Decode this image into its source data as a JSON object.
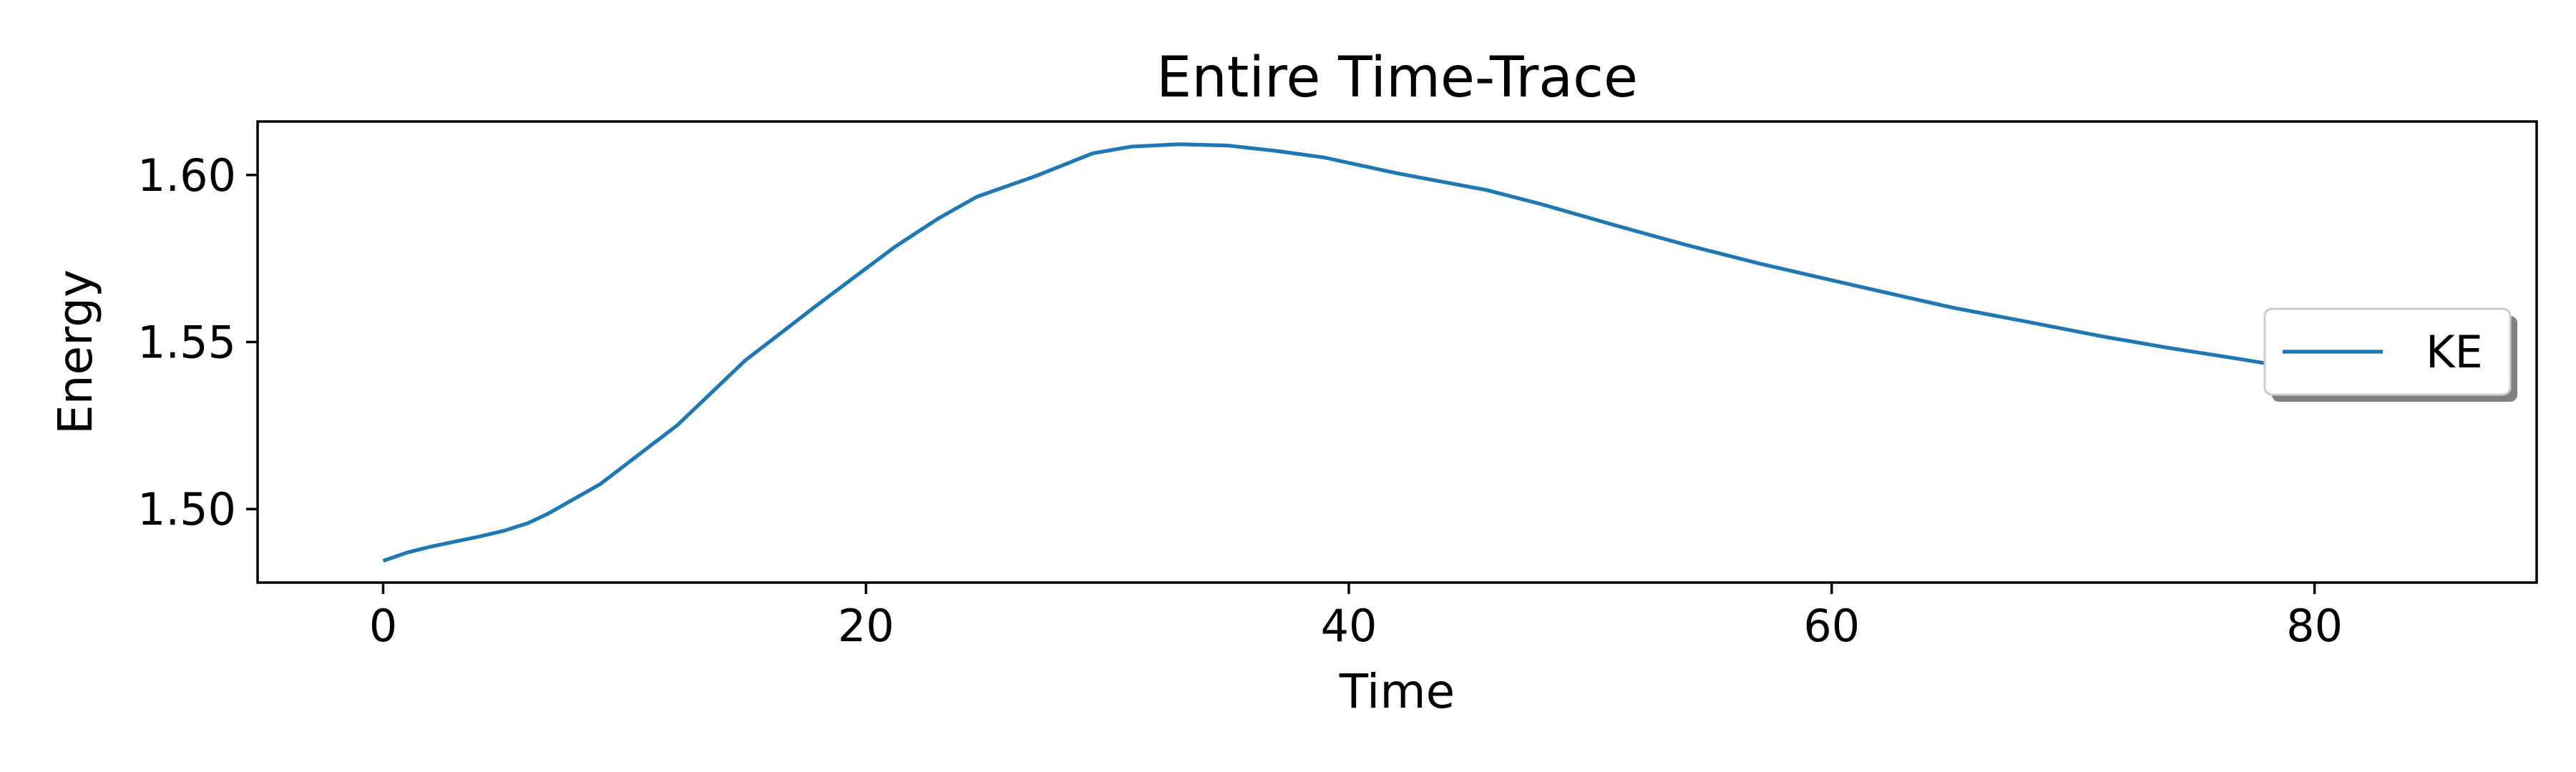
{
  "chart_data": {
    "type": "line",
    "title": "Entire Time-Trace",
    "xlabel": "Time",
    "ylabel": "Energy",
    "xlim": [
      -5.2,
      89.2
    ],
    "ylim": [
      1.478,
      1.616
    ],
    "x_ticks": [
      0,
      20,
      40,
      60,
      80
    ],
    "x_tick_labels": [
      "0",
      "20",
      "40",
      "60",
      "80"
    ],
    "y_ticks": [
      1.5,
      1.55,
      1.6
    ],
    "y_tick_labels": [
      "1.50",
      "1.55",
      "1.60"
    ],
    "grid": false,
    "legend_position": "center-right",
    "series": [
      {
        "name": "KE",
        "color": "#1f77b4",
        "x": [
          0,
          1,
          2,
          3,
          4,
          5,
          6,
          6.8,
          9,
          12.2,
          15,
          18,
          21.2,
          23,
          24.6,
          27,
          29.4,
          31,
          33,
          35,
          37,
          39,
          42,
          45.7,
          48,
          51,
          54,
          57,
          60,
          62,
          65,
          68,
          71.2,
          74,
          77,
          80
        ],
        "y": [
          1.4845,
          1.487,
          1.4888,
          1.4903,
          1.4918,
          1.4935,
          1.4958,
          1.4985,
          1.5075,
          1.5252,
          1.5445,
          1.5612,
          1.5785,
          1.587,
          1.5935,
          1.5996,
          1.6065,
          1.6085,
          1.6092,
          1.6088,
          1.6072,
          1.6052,
          1.6005,
          1.5955,
          1.5912,
          1.585,
          1.579,
          1.5735,
          1.5685,
          1.5652,
          1.5603,
          1.5562,
          1.5517,
          1.5482,
          1.5448,
          1.5412
        ]
      }
    ]
  }
}
